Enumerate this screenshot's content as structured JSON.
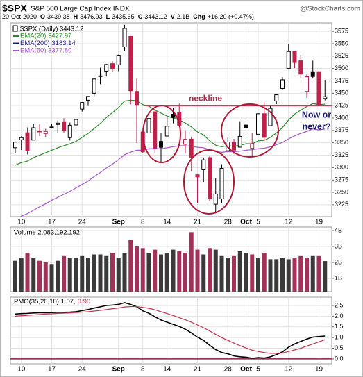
{
  "header": {
    "symbol": "$SPX",
    "name": "S&P 500 Large Cap Index INDX",
    "date": "20-Oct-2020",
    "quote": [
      {
        "label": "O",
        "text": "3439.38"
      },
      {
        "label": "H",
        "text": "3476.93"
      },
      {
        "label": "L",
        "text": "3435.65"
      },
      {
        "label": "C",
        "text": "3443.12"
      },
      {
        "label": "V",
        "text": "2.1B"
      },
      {
        "label": "Chg",
        "text": "+16.20 (+0.47%)"
      }
    ],
    "source": "@StockCharts.com"
  },
  "chart_data": [
    {
      "type": "candlestick",
      "legend_title": "$SPX (Daily) 3443.12",
      "categories": [
        null,
        "10",
        null,
        null,
        null,
        null,
        "17",
        null,
        null,
        null,
        null,
        "24",
        null,
        null,
        null,
        null,
        null,
        "Sep",
        null,
        null,
        null,
        "8",
        null,
        null,
        null,
        "14",
        null,
        null,
        null,
        null,
        "21",
        null,
        null,
        null,
        null,
        "28",
        null,
        null,
        "Oct",
        null,
        "5",
        null,
        null,
        null,
        null,
        "12",
        null,
        null,
        null,
        null,
        "19",
        null
      ],
      "open": [
        3340.05,
        3356.04,
        3370.34,
        3355.46,
        3372.95,
        3368.66,
        3380.86,
        3387.04,
        3392.51,
        3360.48,
        3386.01,
        3418.09,
        3435.95,
        3449.97,
        3485.14,
        3494.69,
        3509.73,
        3507.44,
        3543.76,
        3564.74,
        3453.6,
        3371.88,
        3369.82,
        3412.56,
        3352.7,
        3363.56,
        3407.73,
        3411.23,
        3346.86,
        3357.38,
        3285.57,
        3295.75,
        3320.11,
        3226.14,
        3236.66,
        3333.9,
        3350.92,
        3341.21,
        3385.87,
        3338.94,
        3367.27,
        3408.74,
        3384.56,
        3434.28,
        3459.67,
        3500.02,
        3534.01,
        3515.47,
        3453.72,
        3493.5,
        3493.66,
        3439.38
      ],
      "high": [
        3352.54,
        3363.29,
        3381.01,
        3387.89,
        3387.24,
        3378.51,
        3387.59,
        3395.06,
        3399.54,
        3390.8,
        3399.96,
        3432.09,
        3444.21,
        3481.07,
        3501.38,
        3509.23,
        3514.77,
        3528.03,
        3588.11,
        3564.85,
        3479.15,
        3379.97,
        3424.77,
        3425.55,
        3368.95,
        3402.93,
        3419.48,
        3428.92,
        3375.17,
        3362.27,
        3285.57,
        3320.31,
        3323.35,
        3278.7,
        3306.88,
        3360.74,
        3357.92,
        3393.56,
        3397.18,
        3369.1,
        3409.57,
        3431.56,
        3426.26,
        3447.28,
        3482.34,
        3549.85,
        3534.01,
        3527.94,
        3489.08,
        3515.76,
        3502.42,
        3476.93
      ],
      "low": [
        3328.72,
        3335.44,
        3326.44,
        3355.46,
        3363.35,
        3361.64,
        3379.22,
        3370.15,
        3369.66,
        3354.69,
        3379.31,
        3413.13,
        3425.84,
        3444.15,
        3468.35,
        3484.32,
        3493.25,
        3494.6,
        3535.23,
        3427.41,
        3349.63,
        3329.27,
        3366.84,
        3329.25,
        3310.47,
        3363.56,
        3389.25,
        3384.45,
        3328.82,
        3292.4,
        3229.1,
        3270.95,
        3232.57,
        3209.45,
        3228.44,
        3332.91,
        3327.54,
        3340.47,
        3361.39,
        3323.69,
        3367.27,
        3354.54,
        3384.56,
        3428.15,
        3458.07,
        3499.61,
        3500.86,
        3480.55,
        3440.89,
        3480.45,
        3419.93,
        3435.65
      ],
      "close": [
        3351.28,
        3360.47,
        3333.69,
        3380.35,
        3373.43,
        3372.85,
        3381.99,
        3389.78,
        3374.85,
        3385.51,
        3397.16,
        3431.28,
        3443.62,
        3478.73,
        3484.55,
        3508.01,
        3500.31,
        3526.65,
        3580.84,
        3455.06,
        3426.96,
        3331.84,
        3398.96,
        3339.19,
        3340.97,
        3383.54,
        3401.2,
        3385.49,
        3357.01,
        3319.47,
        3281.06,
        3315.57,
        3236.92,
        3246.59,
        3298.46,
        3351.6,
        3335.47,
        3363.0,
        3380.8,
        3348.42,
        3408.6,
        3360.97,
        3419.44,
        3446.83,
        3477.14,
        3534.22,
        3511.93,
        3488.67,
        3483.34,
        3483.81,
        3426.92,
        3443.12
      ],
      "up_color": "#000000",
      "down_color": "#c0204a",
      "series": [
        {
          "name": "EMA(20) 3427.97",
          "color": "#2a8a2a",
          "values": [
            3305,
            3310,
            3313,
            3320,
            3325,
            3330,
            3335,
            3340,
            3344,
            3348,
            3353,
            3361,
            3369,
            3379,
            3389,
            3401,
            3411,
            3421,
            3434,
            3436,
            3435,
            3427,
            3424,
            3416,
            3410,
            3404,
            3400,
            3396,
            3390,
            3382,
            3372,
            3366,
            3354,
            3345,
            3342,
            3344,
            3343,
            3345,
            3348,
            3348,
            3354,
            3355,
            3361,
            3370,
            3381,
            3396,
            3408,
            3416,
            3423,
            3429,
            3427,
            3427.97
          ]
        },
        {
          "name": "EMA(200) 3183.14",
          "color": "#1b1b7a"
        },
        {
          "name": "EMA(50) 3377.80",
          "color": "#a855cc",
          "values": [
            3195,
            3202,
            3207,
            3214,
            3221,
            3227,
            3234,
            3240,
            3246,
            3252,
            3259,
            3266,
            3273,
            3282,
            3290,
            3299,
            3307,
            3316,
            3326,
            3331,
            3335,
            3335,
            3338,
            3338,
            3338,
            3340,
            3342,
            3344,
            3344,
            3343,
            3341,
            3340,
            3336,
            3332,
            3331,
            3332,
            3332,
            3333,
            3335,
            3336,
            3338,
            3339,
            3342,
            3346,
            3351,
            3358,
            3364,
            3369,
            3373,
            3378,
            3376,
            3377.8
          ]
        }
      ],
      "ylim": [
        3201,
        3592
      ],
      "yticks": [
        3225,
        3250,
        3275,
        3300,
        3325,
        3350,
        3375,
        3400,
        3425,
        3450,
        3475,
        3500,
        3525,
        3550,
        3575
      ],
      "grid": true,
      "neckline": {
        "label": "neckline",
        "value": 3425,
        "color": "#b02a4a"
      },
      "callout": {
        "lines": [
          "Now or",
          "never?"
        ],
        "color": "#1a1a6e"
      }
    },
    {
      "type": "bar",
      "legend_title": "Volume 2,083,192,192",
      "values": [
        2.1,
        2.3,
        2.6,
        2.3,
        2.1,
        2.0,
        1.9,
        2.1,
        2.4,
        2.3,
        2.3,
        2.4,
        2.3,
        2.5,
        2.5,
        2.4,
        2.6,
        2.3,
        2.6,
        3.4,
        3.0,
        2.9,
        2.6,
        2.8,
        2.5,
        2.6,
        2.8,
        2.7,
        2.6,
        3.9,
        2.8,
        2.5,
        2.9,
        2.8,
        2.4,
        2.3,
        2.4,
        2.7,
        2.6,
        2.5,
        2.3,
        2.6,
        2.2,
        2.2,
        2.3,
        2.2,
        2.3,
        2.4,
        2.3,
        2.4,
        2.4,
        2.083192192
      ],
      "up_color": "#3a3a3a",
      "down_color": "#a3325a",
      "ylim": [
        0.17,
        4.22
      ],
      "yticks": [
        {
          "value": 1,
          "label": "1B"
        },
        {
          "value": 2,
          "label": "2B"
        },
        {
          "value": 3,
          "label": "3B"
        },
        {
          "value": 4,
          "label": "4B"
        }
      ],
      "grid": true
    },
    {
      "type": "line",
      "categories": [
        null,
        "10",
        null,
        null,
        null,
        null,
        "17",
        null,
        null,
        null,
        null,
        "24",
        null,
        null,
        null,
        null,
        null,
        "Sep",
        null,
        null,
        null,
        "8",
        null,
        null,
        null,
        "14",
        null,
        null,
        null,
        null,
        "21",
        null,
        null,
        null,
        null,
        "28",
        null,
        null,
        "Oct",
        null,
        "5",
        null,
        null,
        null,
        null,
        "12",
        null,
        null,
        null,
        null,
        "19",
        null
      ],
      "series": [
        {
          "name": "PMO(35,20,10) 1.07,",
          "color": "#000000",
          "values": [
            2.1,
            2.12,
            2.13,
            2.15,
            2.16,
            2.16,
            2.17,
            2.18,
            2.18,
            2.19,
            2.21,
            2.26,
            2.31,
            2.38,
            2.44,
            2.5,
            2.52,
            2.55,
            2.63,
            2.55,
            2.44,
            2.25,
            2.14,
            1.97,
            1.82,
            1.72,
            1.62,
            1.52,
            1.39,
            1.22,
            1.02,
            0.87,
            0.64,
            0.44,
            0.3,
            0.24,
            0.14,
            0.1,
            0.08,
            0.03,
            0.06,
            0.04,
            0.1,
            0.2,
            0.33,
            0.55,
            0.7,
            0.82,
            0.93,
            1.02,
            1.05,
            1.07
          ]
        },
        {
          "name": "0.90",
          "color": "#c0304a",
          "values": [
            2.0,
            2.02,
            2.04,
            2.06,
            2.08,
            2.1,
            2.11,
            2.13,
            2.14,
            2.15,
            2.17,
            2.19,
            2.21,
            2.24,
            2.27,
            2.31,
            2.35,
            2.38,
            2.43,
            2.45,
            2.45,
            2.41,
            2.37,
            2.3,
            2.21,
            2.12,
            2.03,
            1.93,
            1.83,
            1.72,
            1.59,
            1.46,
            1.31,
            1.15,
            1.0,
            0.87,
            0.74,
            0.62,
            0.51,
            0.41,
            0.35,
            0.3,
            0.26,
            0.26,
            0.28,
            0.35,
            0.42,
            0.5,
            0.6,
            0.7,
            0.8,
            0.9
          ]
        }
      ],
      "ylim": [
        -0.23,
        2.89
      ],
      "yticks": [
        {
          "value": 0,
          "label": "0.0"
        },
        0.5,
        {
          "value": 1,
          "label": "1.0"
        },
        1.5,
        {
          "value": 2,
          "label": "2.0"
        },
        2.5
      ],
      "grid": true,
      "reference_line": {
        "value": 0,
        "color": "#8e1a3e"
      }
    }
  ]
}
